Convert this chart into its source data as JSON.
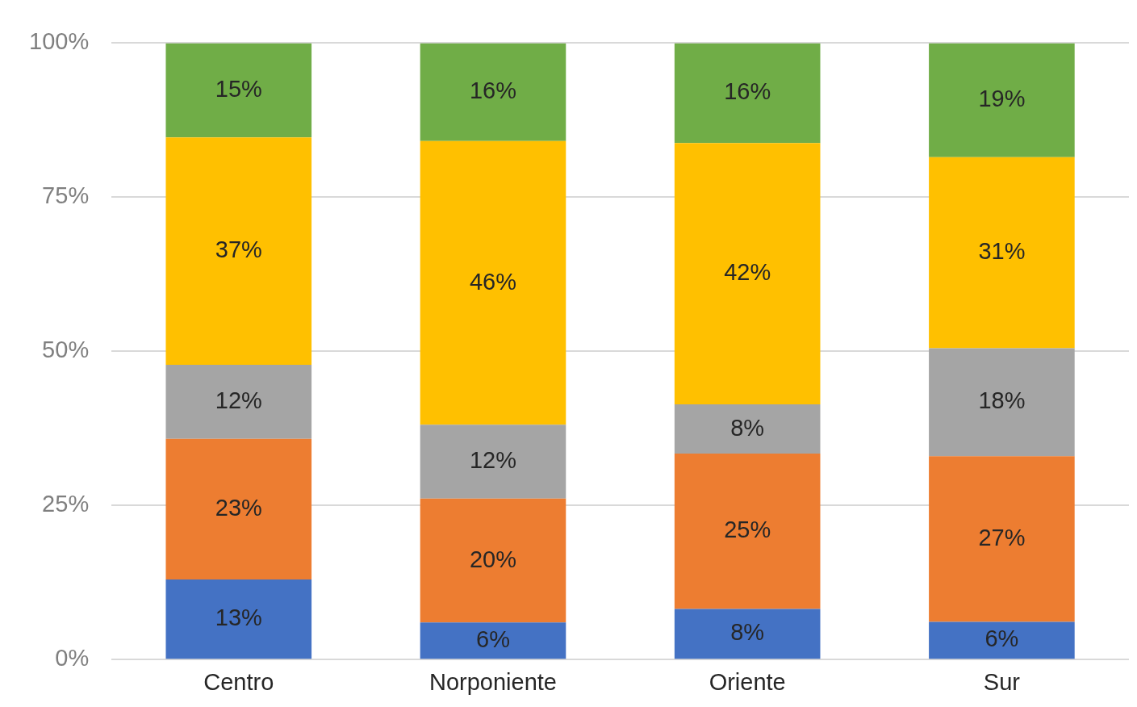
{
  "chart_data": {
    "type": "bar",
    "stacked": true,
    "categories": [
      "Centro",
      "Norponiente",
      "Oriente",
      "Sur"
    ],
    "series": [
      {
        "color": "#4472c4",
        "values": [
          13.0,
          6.0,
          8.2,
          6.1
        ],
        "value_labels": [
          "13%",
          "6%",
          "8%",
          "6%"
        ]
      },
      {
        "color": "#ed7d31",
        "values": [
          22.8,
          20.1,
          25.2,
          26.9
        ],
        "value_labels": [
          "23%",
          "20%",
          "25%",
          "27%"
        ]
      },
      {
        "color": "#a5a5a5",
        "values": [
          12.0,
          12.0,
          8.0,
          17.5
        ],
        "value_labels": [
          "12%",
          "12%",
          "8%",
          "18%"
        ]
      },
      {
        "color": "#ffc000",
        "values": [
          36.9,
          46.0,
          42.4,
          31.0
        ],
        "value_labels": [
          "37%",
          "46%",
          "42%",
          "31%"
        ]
      },
      {
        "color": "#70ad47",
        "values": [
          15.3,
          15.9,
          16.2,
          18.5
        ],
        "value_labels": [
          "15%",
          "16%",
          "16%",
          "19%"
        ]
      }
    ],
    "ylim": [
      0,
      100
    ],
    "yticks": [
      {
        "value": 0,
        "label": "0%"
      },
      {
        "value": 25,
        "label": "25%"
      },
      {
        "value": 50,
        "label": "50%"
      },
      {
        "value": 75,
        "label": "75%"
      },
      {
        "value": 100,
        "label": "100%"
      }
    ],
    "grid": "y",
    "legend": false
  }
}
